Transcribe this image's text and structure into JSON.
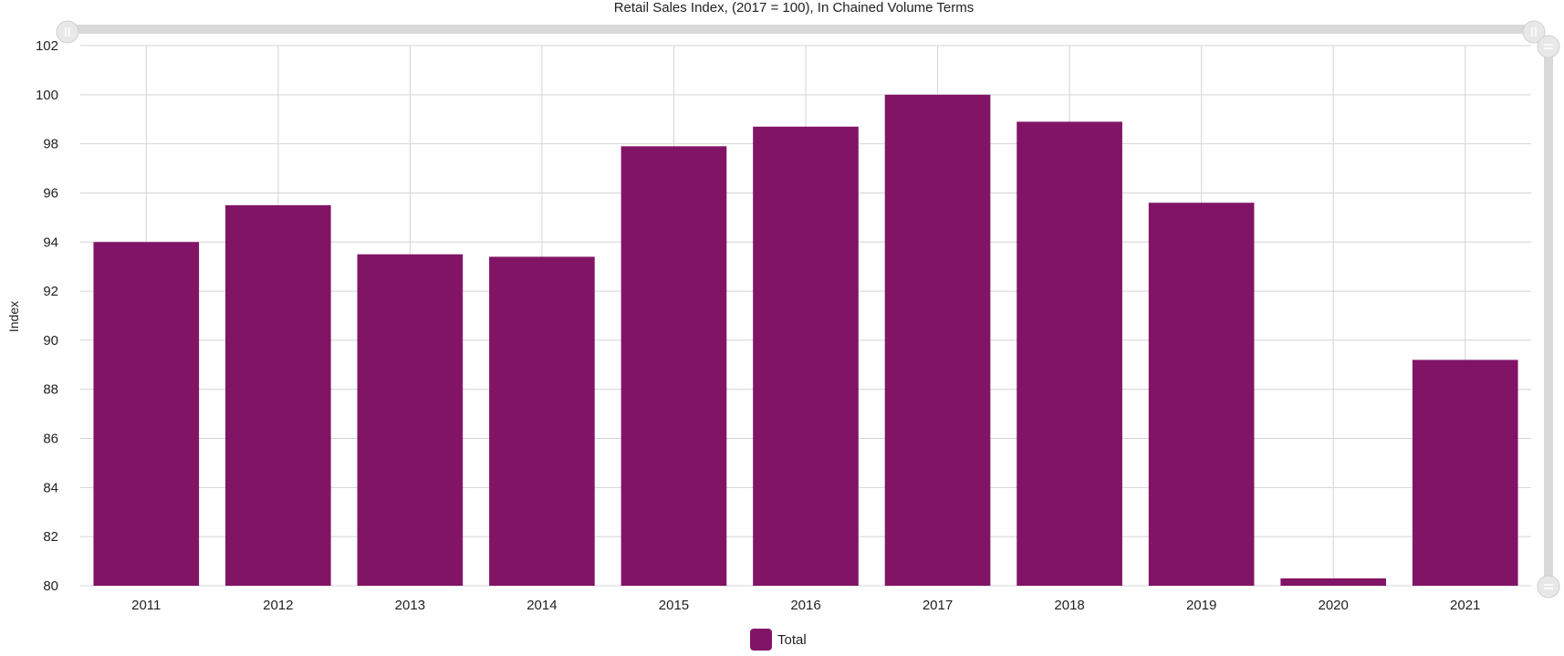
{
  "chart_data": {
    "type": "bar",
    "title": "Retail Sales Index, (2017 = 100), In Chained Volume Terms",
    "xlabel": "",
    "ylabel": "Index",
    "categories": [
      "2011",
      "2012",
      "2013",
      "2014",
      "2015",
      "2016",
      "2017",
      "2018",
      "2019",
      "2020",
      "2021"
    ],
    "series": [
      {
        "name": "Total",
        "color": "#821466",
        "values": [
          94.0,
          95.5,
          93.5,
          93.4,
          97.9,
          98.7,
          100.0,
          98.9,
          95.6,
          80.3,
          89.2
        ]
      }
    ],
    "ylim": [
      80,
      102
    ],
    "yticks": [
      "80",
      "82",
      "84",
      "86",
      "88",
      "90",
      "92",
      "94",
      "96",
      "98",
      "100",
      "102"
    ],
    "grid": true,
    "legend_position": "bottom-center"
  }
}
